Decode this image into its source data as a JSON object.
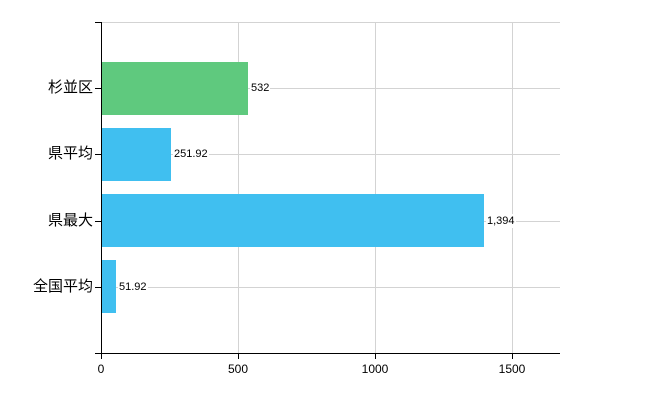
{
  "chart_data": {
    "type": "bar",
    "orientation": "horizontal",
    "categories": [
      "杉並区",
      "県平均",
      "県最大",
      "全国平均"
    ],
    "values": [
      532,
      251.92,
      1394,
      51.92
    ],
    "value_labels": [
      "532",
      "251.92",
      "1,394",
      "51.92"
    ],
    "bar_colors": [
      "#5fc97e",
      "#40bff0",
      "#40bff0",
      "#40bff0"
    ],
    "xlim": [
      0,
      1675
    ],
    "xticks": [
      0,
      500,
      1000,
      1500
    ],
    "xtick_labels": [
      "0",
      "500",
      "1000",
      "1500"
    ],
    "grid": true,
    "legend": "none",
    "colors": {
      "green_bar": "#5fc97e",
      "blue_bar": "#40bff0",
      "gridline": "#d3d3d3",
      "axis": "#000000",
      "text": "#000000",
      "background": "#ffffff"
    }
  }
}
